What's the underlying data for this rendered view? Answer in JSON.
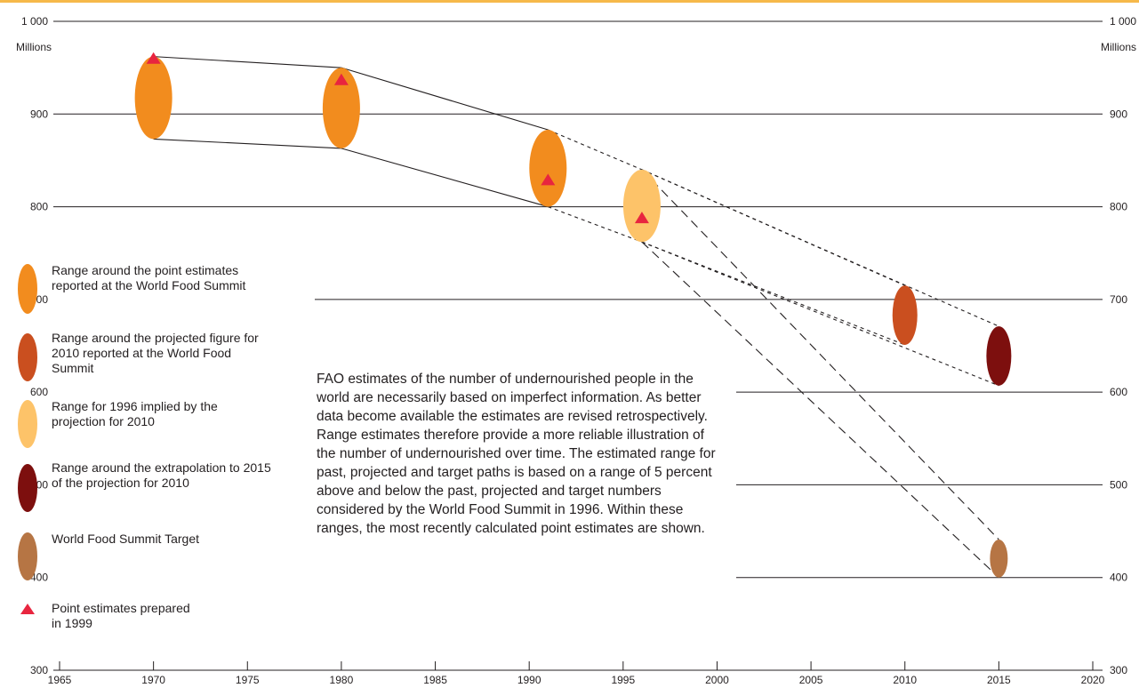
{
  "chart_data": {
    "type": "scatter",
    "title": "",
    "xlabel": "",
    "ylabel": "Millions",
    "xlim": [
      1965,
      2020
    ],
    "ylim": [
      300,
      1000
    ],
    "x_ticks": [
      1965,
      1970,
      1975,
      1980,
      1985,
      1990,
      1995,
      2000,
      2005,
      2010,
      2015,
      2020
    ],
    "y_ticks": [
      {
        "value": 300,
        "label": "300"
      },
      {
        "value": 400,
        "label": "400"
      },
      {
        "value": 500,
        "label": "500"
      },
      {
        "value": 600,
        "label": "600"
      },
      {
        "value": 700,
        "label": "700"
      },
      {
        "value": 800,
        "label": "800"
      },
      {
        "value": 900,
        "label": "900"
      },
      {
        "value": 1000,
        "label": "1 000"
      }
    ],
    "ranges": [
      {
        "key": "wfs_point_estimates",
        "x": 1970,
        "low": 873,
        "high": 962,
        "color": "#f28c1e"
      },
      {
        "key": "wfs_point_estimates",
        "x": 1980,
        "low": 863,
        "high": 950,
        "color": "#f28c1e"
      },
      {
        "key": "wfs_point_estimates",
        "x": 1991,
        "low": 800,
        "high": 883,
        "color": "#f28c1e"
      },
      {
        "key": "range_1996",
        "x": 1996,
        "low": 762,
        "high": 840,
        "color": "#fdc369"
      },
      {
        "key": "projection_2010",
        "x": 2010,
        "low": 651,
        "high": 715,
        "color": "#ca4f1f"
      },
      {
        "key": "extrapolation_2015",
        "x": 2015,
        "low": 607,
        "high": 671,
        "color": "#7d0f0e"
      },
      {
        "key": "wfs_target",
        "x": 2015,
        "low": 400,
        "high": 441,
        "color": "#b67544"
      }
    ],
    "point_estimates_1999": [
      {
        "x": 1970,
        "y": 960
      },
      {
        "x": 1980,
        "y": 937
      },
      {
        "x": 1991,
        "y": 829
      },
      {
        "x": 1996,
        "y": 788
      }
    ],
    "connectors": {
      "solid": [
        [
          [
            1970,
            962
          ],
          [
            1980,
            950
          ]
        ],
        [
          [
            1980,
            950
          ],
          [
            1991,
            883
          ]
        ],
        [
          [
            1970,
            873
          ],
          [
            1980,
            863
          ]
        ],
        [
          [
            1980,
            863
          ],
          [
            1991,
            800
          ]
        ]
      ],
      "short_dash": [
        [
          [
            1991,
            883
          ],
          [
            1996,
            840
          ]
        ],
        [
          [
            1996,
            840
          ],
          [
            2015,
            671
          ]
        ],
        [
          [
            1991,
            800
          ],
          [
            1996,
            762
          ]
        ],
        [
          [
            1996,
            762
          ],
          [
            2010,
            651
          ]
        ],
        [
          [
            1996,
            840
          ],
          [
            2010,
            715
          ]
        ],
        [
          [
            1996,
            762
          ],
          [
            2015,
            607
          ]
        ]
      ],
      "long_dash": [
        [
          [
            1996,
            840
          ],
          [
            2015,
            441
          ]
        ],
        [
          [
            1996,
            762
          ],
          [
            2015,
            400
          ]
        ]
      ]
    },
    "legend": [
      {
        "key": "wfs_point_estimates",
        "marker": "ellipse",
        "color": "#f28c1e",
        "label": "Range around the point estimates reported at the World Food Summit"
      },
      {
        "key": "projection_2010",
        "marker": "ellipse",
        "color": "#ca4f1f",
        "label": "Range around the projected figure for 2010 reported at the World Food Summit"
      },
      {
        "key": "range_1996",
        "marker": "ellipse",
        "color": "#fdc369",
        "label": "Range for 1996 implied by the projection for 2010"
      },
      {
        "key": "extrapolation_2015",
        "marker": "ellipse",
        "color": "#7d0f0e",
        "label": "Range around the extrapolation to 2015 of the projection for 2010"
      },
      {
        "key": "wfs_target",
        "marker": "ellipse",
        "color": "#b67544",
        "label": "World Food Summit Target"
      },
      {
        "key": "point_estimates_1999",
        "marker": "triangle",
        "color": "#e8253f",
        "label": "Point estimates prepared in 1999"
      }
    ],
    "annotation": "FAO estimates of the number of undernourished people in the world are necessarily based on imperfect information. As better data become available the estimates are revised retrospectively. Range estimates therefore provide a more reliable illustration of the number of undernourished over time. The estimated range for past, projected and target paths is based on a range of 5 percent above and below the past, projected and target numbers considered by the World Food Summit in 1996. Within these ranges, the most recently calculated point estimates are shown.",
    "colors": {
      "axis": "#231f20",
      "accent_bar": "#f6b94a"
    }
  }
}
